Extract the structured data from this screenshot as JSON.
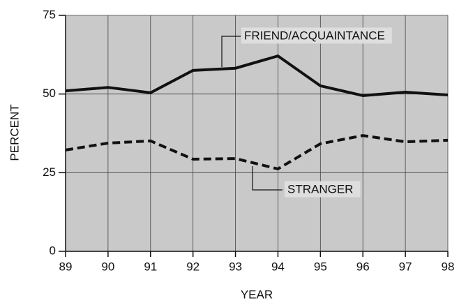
{
  "chart_data": {
    "type": "line",
    "xlabel": "YEAR",
    "ylabel": "PERCENT",
    "x": [
      89,
      90,
      91,
      92,
      93,
      94,
      95,
      96,
      97,
      98
    ],
    "xlim": [
      89,
      98
    ],
    "xticks": [
      89,
      90,
      91,
      92,
      93,
      94,
      95,
      96,
      97,
      98
    ],
    "ylim": [
      0,
      75
    ],
    "yticks": [
      0,
      25,
      50,
      75
    ],
    "grid": true,
    "series": [
      {
        "name": "FRIEND/ACQUAINTANCE",
        "color": "#111111",
        "dash": false,
        "values": [
          51.0,
          52.1,
          50.4,
          57.5,
          58.2,
          62.1,
          52.6,
          49.5,
          50.6,
          49.7
        ]
      },
      {
        "name": "STRANGER",
        "color": "#111111",
        "dash": true,
        "values": [
          32.2,
          34.4,
          35.1,
          29.3,
          29.5,
          26.2,
          34.2,
          36.8,
          34.8,
          35.3
        ]
      }
    ]
  }
}
